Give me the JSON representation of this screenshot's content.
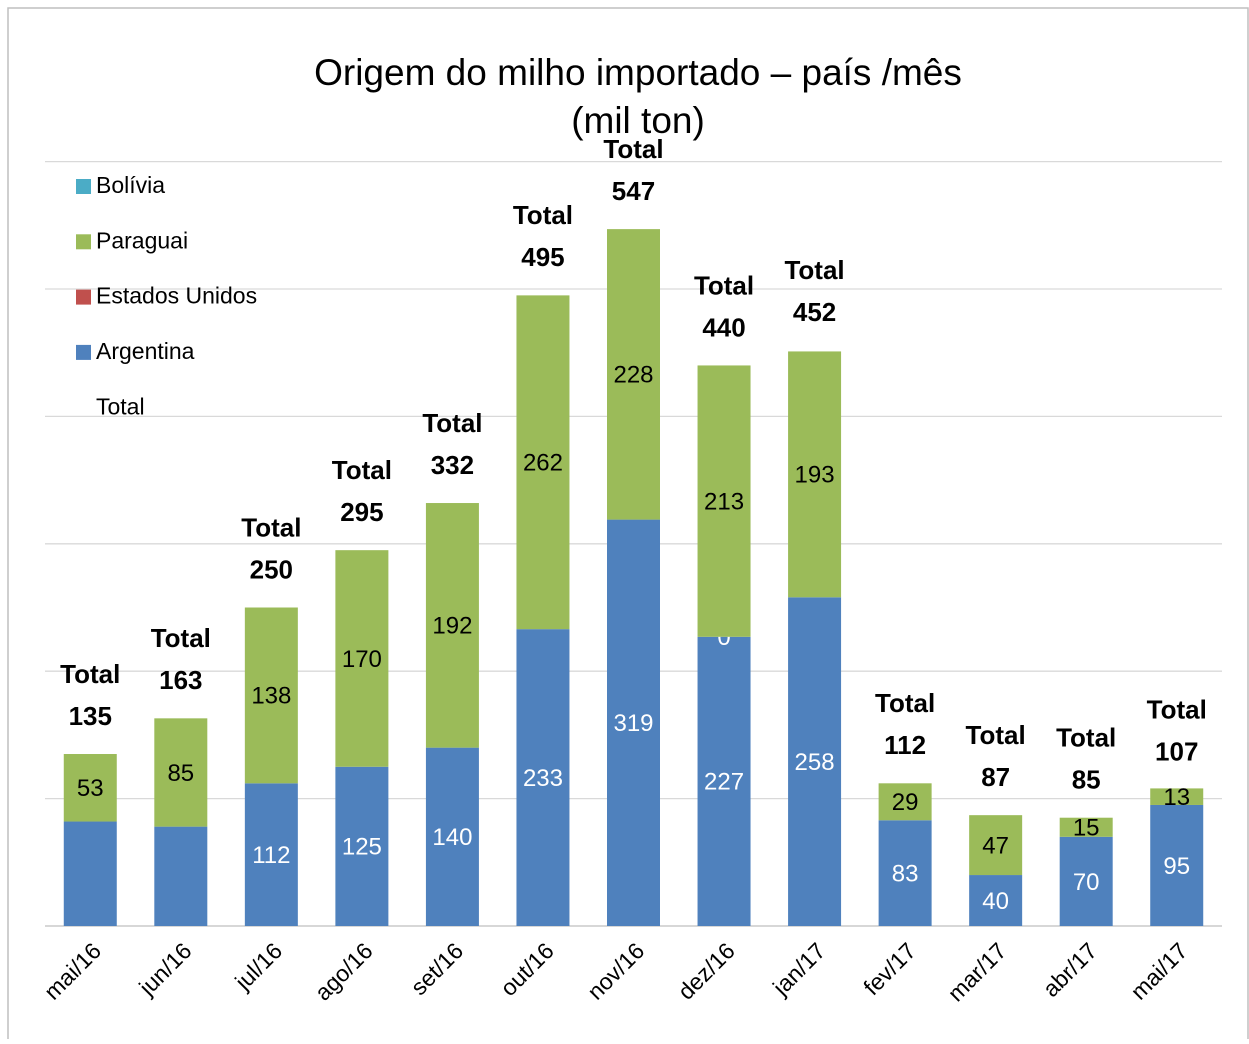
{
  "chart_data": {
    "type": "stacked_bar",
    "title": "Origem do milho importado – país /mês",
    "subtitle": "(mil ton)",
    "categories": [
      "mai/16",
      "jun/16",
      "jul/16",
      "ago/16",
      "set/16",
      "out/16",
      "nov/16",
      "dez/16",
      "jan/17",
      "fev/17",
      "mar/17",
      "abr/17",
      "mai/17"
    ],
    "series": [
      {
        "name": "Argentina",
        "color": "#4f81bd",
        "label_color": "#ffffff",
        "values": [
          82,
          78,
          112,
          125,
          140,
          233,
          319,
          227,
          258,
          83,
          40,
          70,
          95
        ],
        "value_labels": [
          null,
          null,
          "112",
          "125",
          "140",
          "233",
          "319",
          "227",
          "258",
          "83",
          "40",
          "70",
          "95"
        ]
      },
      {
        "name": "Estados Unidos",
        "color": "#c0504d",
        "label_color": "#ffffff",
        "values": [
          null,
          null,
          null,
          null,
          null,
          null,
          null,
          0,
          null,
          null,
          null,
          null,
          null
        ]
      },
      {
        "name": "Paraguai",
        "color": "#9bbb59",
        "label_color": "#000000",
        "values": [
          53,
          85,
          138,
          170,
          192,
          262,
          228,
          213,
          193,
          29,
          47,
          15,
          13
        ]
      },
      {
        "name": "Bolívia",
        "color": "#4bacc6",
        "label_color": "#000000",
        "values": [
          null,
          null,
          null,
          null,
          null,
          null,
          null,
          null,
          null,
          null,
          null,
          null,
          null
        ]
      }
    ],
    "totals": {
      "name": "Total",
      "values": [
        135,
        163,
        250,
        295,
        332,
        495,
        547,
        440,
        452,
        112,
        87,
        85,
        107
      ]
    },
    "ylim": [
      0,
      600
    ],
    "yticks": [
      0,
      100,
      200,
      300,
      400,
      500,
      600
    ],
    "ytick_labels": false,
    "grid": true,
    "legend": "upper left"
  }
}
